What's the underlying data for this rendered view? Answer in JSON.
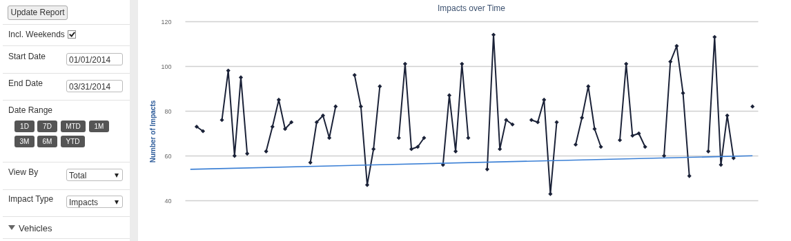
{
  "chart_data": [
    {
      "type": "other",
      "annotations": [
        "Update Report",
        "Incl. Weekends",
        "Start Date",
        "01/01/2014",
        "End Date",
        "03/31/2014",
        "Date Range",
        "1D",
        "7D",
        "MTD",
        "1M",
        "3M",
        "6M",
        "YTD",
        "View By",
        "Total",
        "Impact Type",
        "Impacts",
        "Vehicles"
      ]
    },
    {
      "type": "line",
      "title": "Impacts over Time",
      "ylabel": "Number of Impacts",
      "categories": [
        null,
        null,
        null,
        null,
        null,
        null,
        null,
        null,
        null,
        null,
        null,
        null,
        null,
        null,
        null,
        null,
        null,
        null,
        null,
        null,
        null,
        null,
        null,
        null,
        null,
        null,
        null,
        null,
        null,
        null,
        null,
        null,
        null,
        null,
        null,
        null,
        null,
        null,
        null,
        null,
        null,
        null,
        null,
        null,
        null,
        null,
        null,
        null,
        null,
        null,
        null,
        null,
        null,
        null,
        null,
        null,
        null,
        null,
        null,
        null,
        null,
        null,
        null,
        null,
        null,
        null,
        null,
        null,
        null,
        null,
        null,
        null,
        null,
        null,
        null,
        null,
        null,
        null,
        null,
        null,
        null,
        null,
        null,
        null,
        null,
        null,
        null,
        null,
        null,
        null
      ],
      "series": [
        {
          "color": "#1b2238",
          "values": [
            null,
            73,
            71,
            null,
            null,
            76,
            98,
            60,
            95,
            61,
            null,
            null,
            62,
            73,
            85,
            72,
            75,
            null,
            null,
            57,
            75,
            78,
            68,
            82,
            null,
            null,
            96,
            82,
            47,
            63,
            91,
            null,
            null,
            68,
            101,
            63,
            64,
            68,
            null,
            null,
            56,
            87,
            62,
            101,
            68,
            null,
            null,
            54,
            114,
            63,
            76,
            74,
            null,
            null,
            76,
            75,
            85,
            43,
            75,
            null,
            null,
            65,
            77,
            91,
            72,
            64,
            null,
            null,
            67,
            101,
            69,
            70,
            64,
            null,
            null,
            60,
            102,
            109,
            88,
            51,
            null,
            null,
            62,
            113,
            56,
            78,
            59,
            null,
            null,
            82
          ]
        },
        {
          "type": "line",
          "color": "#3a7fd5",
          "marker": "none",
          "values": [
            54,
            null,
            null,
            null,
            null,
            null,
            null,
            null,
            null,
            null,
            null,
            null,
            null,
            null,
            null,
            null,
            null,
            null,
            null,
            null,
            null,
            null,
            null,
            null,
            null,
            null,
            null,
            null,
            null,
            null,
            null,
            null,
            null,
            null,
            null,
            null,
            null,
            null,
            null,
            null,
            null,
            null,
            null,
            null,
            null,
            null,
            null,
            null,
            null,
            null,
            null,
            null,
            null,
            null,
            null,
            null,
            null,
            null,
            null,
            null,
            null,
            null,
            null,
            null,
            null,
            null,
            null,
            null,
            null,
            null,
            null,
            null,
            null,
            null,
            null,
            null,
            null,
            null,
            null,
            null,
            null,
            null,
            null,
            null,
            null,
            null,
            null,
            null,
            null,
            60
          ]
        }
      ],
      "ylim": [
        22,
        120
      ],
      "yticks": [
        40,
        60,
        80,
        100,
        120
      ],
      "grid": "y",
      "marker": "diamond",
      "tick_labels": "y"
    }
  ]
}
